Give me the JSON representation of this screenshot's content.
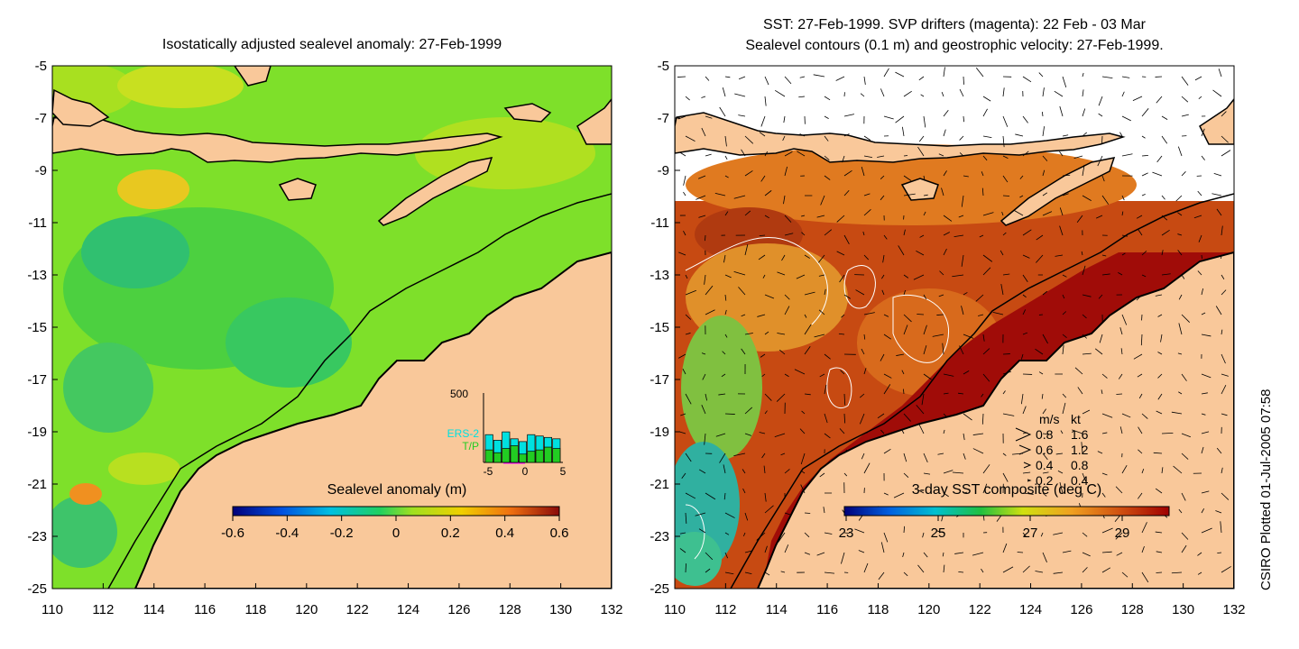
{
  "left_panel": {
    "title": "Isostatically adjusted sealevel anomaly: 27-Feb-1999",
    "colorbar": {
      "label": "Sealevel anomaly (m)",
      "ticks": [
        "-0.6",
        "-0.4",
        "-0.2",
        "0",
        "0.2",
        "0.4",
        "0.6"
      ],
      "range": [
        -0.6,
        0.6
      ]
    },
    "inset": {
      "ymax_label": "500",
      "series_labels": [
        "ERS-2",
        "T/P"
      ],
      "series_colors": [
        "#00e0e0",
        "#22cc22"
      ],
      "x_ticks": [
        "-5",
        "0",
        "5"
      ],
      "ers2_counts": [
        200,
        160,
        220,
        170,
        150,
        200,
        190,
        180,
        170
      ],
      "tp_counts": [
        90,
        70,
        100,
        120,
        60,
        80,
        90,
        110,
        100
      ]
    }
  },
  "right_panel": {
    "title_line1": "SST: 27-Feb-1999. SVP drifters (magenta): 22 Feb - 03 Mar",
    "title_line2": "Sealevel contours (0.1 m) and geostrophic velocity: 27-Feb-1999.",
    "colorbar": {
      "label": "3-day SST composite (deg C)",
      "ticks": [
        "23",
        "25",
        "27",
        "29"
      ],
      "range": [
        23,
        30
      ]
    },
    "velocity_legend": {
      "header_ms": "m/s",
      "header_kt": "kt",
      "rows": [
        {
          "ms": "0.8",
          "kt": "1.6"
        },
        {
          "ms": "0.6",
          "kt": "1.2"
        },
        {
          "ms": "0.4",
          "kt": "0.8"
        },
        {
          "ms": "0.2",
          "kt": "0.4"
        }
      ]
    }
  },
  "axes": {
    "x_ticks": [
      "110",
      "112",
      "114",
      "116",
      "118",
      "120",
      "122",
      "124",
      "126",
      "128",
      "130",
      "132"
    ],
    "y_ticks": [
      "-5",
      "-7",
      "-9",
      "-11",
      "-13",
      "-15",
      "-17",
      "-19",
      "-21",
      "-23",
      "-25"
    ],
    "x_range": [
      110,
      132
    ],
    "y_range": [
      -25,
      -5
    ]
  },
  "credit": "CSIRO Plotted 01-Jul-2005 07:58",
  "colors": {
    "land": "#f9c89a",
    "sla_background": "#7ee02a",
    "sst_background": "#c74a12"
  }
}
